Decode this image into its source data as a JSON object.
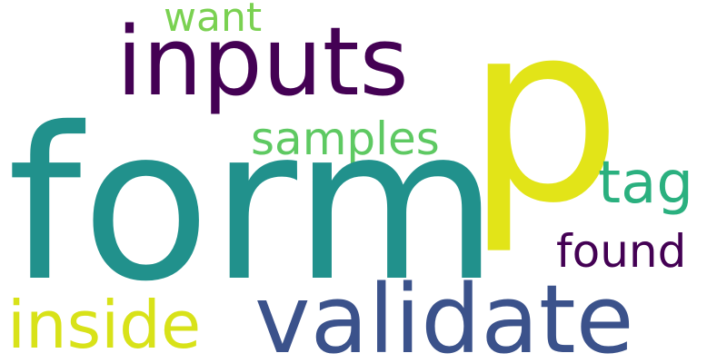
{
  "words": [
    {
      "id": "p",
      "text": "p",
      "color": "#e2e418"
    },
    {
      "id": "form",
      "text": "form",
      "color": "#21918c"
    },
    {
      "id": "inputs",
      "text": "inputs",
      "color": "#440154"
    },
    {
      "id": "validate",
      "text": "validate",
      "color": "#3b528b"
    },
    {
      "id": "inside",
      "text": "inside",
      "color": "#d8e219"
    },
    {
      "id": "samples",
      "text": "samples",
      "color": "#5ec962"
    },
    {
      "id": "tag",
      "text": "tag",
      "color": "#2ab07f"
    },
    {
      "id": "found",
      "text": "found",
      "color": "#440154"
    },
    {
      "id": "want",
      "text": "want",
      "color": "#7ad151"
    }
  ]
}
